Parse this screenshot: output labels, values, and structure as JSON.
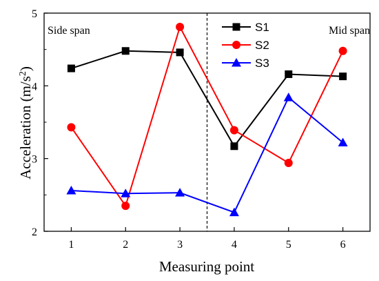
{
  "chart_data": {
    "type": "line",
    "x": [
      1,
      2,
      3,
      4,
      5,
      6
    ],
    "xlabel": "Measuring point",
    "ylabel": "Acceleration (m/s",
    "ylabel_sup": "2",
    "ylabel_close": ")",
    "xlim": [
      0.5,
      6.5
    ],
    "ylim": [
      2,
      5
    ],
    "xticks": [
      "1",
      "2",
      "3",
      "4",
      "5",
      "6"
    ],
    "yticks": [
      "2",
      "3",
      "4",
      "5"
    ],
    "divider_x": 3.5,
    "annotations": {
      "left": "Side span",
      "right": "Mid span"
    },
    "legend_position": "top-center",
    "series": [
      {
        "name": "S1",
        "color": "#000000",
        "marker": "square",
        "values": [
          4.24,
          4.48,
          4.46,
          3.17,
          4.16,
          4.13
        ]
      },
      {
        "name": "S2",
        "color": "#ff0000",
        "marker": "circle",
        "values": [
          3.43,
          2.35,
          4.81,
          3.39,
          2.94,
          4.48
        ]
      },
      {
        "name": "S3",
        "color": "#0000ff",
        "marker": "triangle",
        "values": [
          2.56,
          2.52,
          2.53,
          2.26,
          3.84,
          3.22
        ]
      }
    ]
  }
}
